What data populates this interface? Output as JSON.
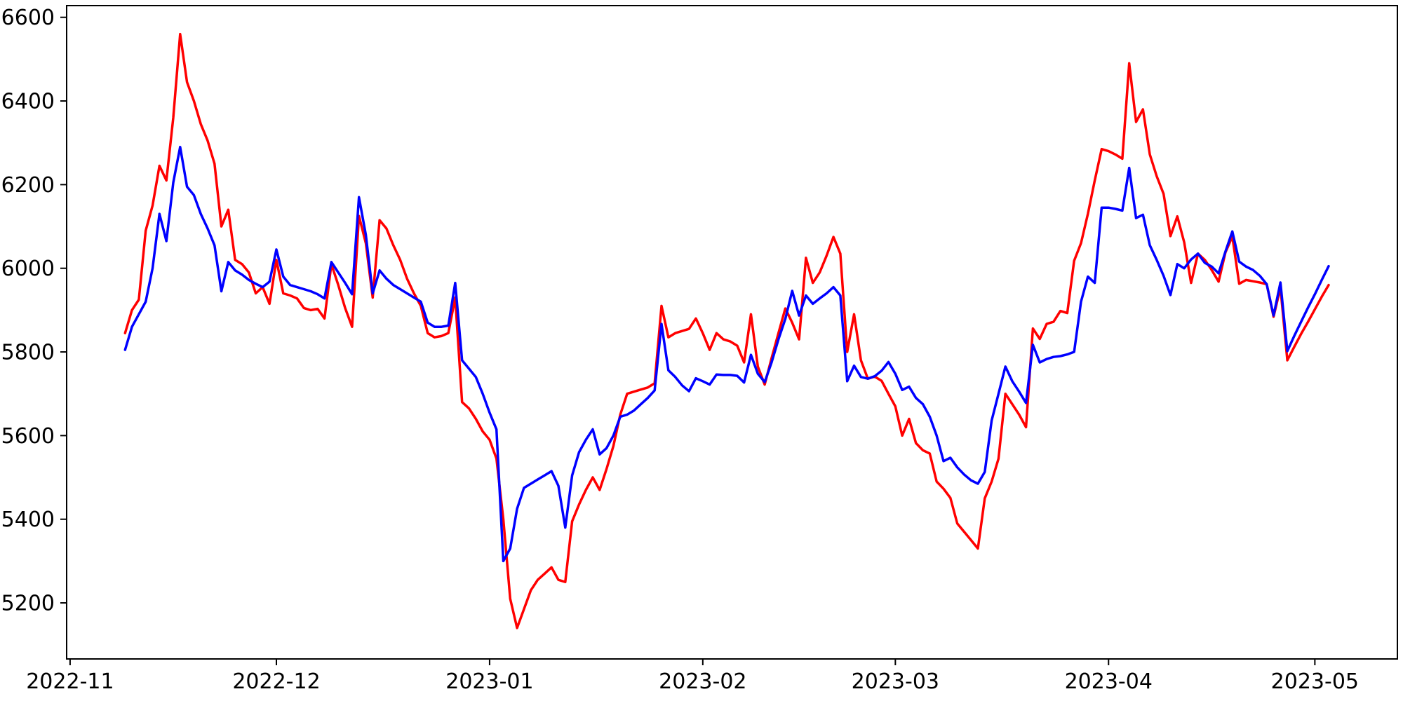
{
  "page": {
    "background_color": "#ffffff"
  },
  "chart_data": {
    "type": "line",
    "title": "",
    "xlabel": "",
    "ylabel": "",
    "grid": false,
    "legend": false,
    "plot_bg_color": "#ffffff",
    "spine_color": "#000000",
    "x_axis": {
      "unit": "date",
      "epoch": "2022-11-01",
      "tick_labels": [
        "2022-11",
        "2022-12",
        "2023-01",
        "2023-02",
        "2023-03",
        "2023-04",
        "2023-05"
      ],
      "tick_day_offsets": [
        0,
        30,
        61,
        92,
        120,
        151,
        181
      ],
      "xlim_days": [
        -0.5,
        193
      ]
    },
    "y_axis": {
      "tick_labels": [
        "5200",
        "5400",
        "5600",
        "5800",
        "6000",
        "6200",
        "6400",
        "6600"
      ],
      "tick_values": [
        5200,
        5400,
        5600,
        5800,
        6000,
        6200,
        6400,
        6600
      ],
      "ylim": [
        5066,
        6628
      ]
    },
    "series": [
      {
        "name": "red-series",
        "color": "#ff0000",
        "line_width": 3.5,
        "x_start_day_offset": 8,
        "x_step_days": 1,
        "values": [
          5845,
          5900,
          5925,
          6090,
          6150,
          6245,
          6210,
          6360,
          6560,
          6445,
          6400,
          6345,
          6305,
          6250,
          6100,
          6140,
          6020,
          6010,
          5990,
          5940,
          5955,
          5915,
          6020,
          5940,
          5935,
          5928,
          5905,
          5900,
          5903,
          5880,
          6010,
          5960,
          5905,
          5860,
          6125,
          6060,
          5930,
          6115,
          6095,
          6055,
          6020,
          5975,
          5940,
          5910,
          5845,
          5835,
          5838,
          5845,
          5930,
          5680,
          5665,
          5640,
          5610,
          5590,
          5545,
          5400,
          5210,
          5140,
          5185,
          5230,
          5255,
          5270,
          5285,
          5255,
          5250,
          5395,
          5435,
          5470,
          5500,
          5470,
          5520,
          5575,
          5650,
          5700,
          5705,
          5710,
          5715,
          5725,
          5910,
          5835,
          5845,
          5850,
          5855,
          5880,
          5845,
          5805,
          5845,
          5830,
          5825,
          5815,
          5775,
          5890,
          5765,
          5722,
          5785,
          5845,
          5904,
          5870,
          5830,
          6025,
          5965,
          5990,
          6030,
          6075,
          6035,
          5800,
          5890,
          5780,
          5736,
          5741,
          5731,
          5700,
          5670,
          5600,
          5640,
          5582,
          5565,
          5557,
          5490,
          5473,
          5451,
          5390,
          5370,
          5350,
          5330,
          5450,
          5490,
          5545,
          5700,
          5675,
          5650,
          5620,
          5856,
          5831,
          5867,
          5872,
          5898,
          5893,
          6018,
          6060,
          6130,
          6210,
          6285,
          6280,
          6272,
          6262,
          6490,
          6350,
          6380,
          6272,
          6220,
          6178,
          6077,
          6124,
          6062,
          5965,
          6035,
          6020,
          5996,
          5968,
          6038,
          6076,
          5963,
          5972,
          5969,
          5966,
          5962,
          5884,
          5954,
          5780,
          5812,
          5843,
          5872,
          5902,
          5932,
          5960
        ]
      },
      {
        "name": "blue-series",
        "color": "#0000ff",
        "line_width": 3.5,
        "x_start_day_offset": 8,
        "x_step_days": 1,
        "values": [
          5805,
          5860,
          5890,
          5920,
          6000,
          6130,
          6065,
          6205,
          6290,
          6195,
          6175,
          6130,
          6095,
          6055,
          5945,
          6015,
          5995,
          5985,
          5972,
          5963,
          5955,
          5968,
          6045,
          5980,
          5960,
          5955,
          5950,
          5945,
          5938,
          5928,
          6015,
          5990,
          5965,
          5938,
          6170,
          6080,
          5940,
          5995,
          5975,
          5960,
          5950,
          5940,
          5930,
          5920,
          5870,
          5860,
          5860,
          5863,
          5965,
          5780,
          5760,
          5740,
          5700,
          5655,
          5615,
          5300,
          5330,
          5425,
          5475,
          5485,
          5495,
          5505,
          5515,
          5480,
          5380,
          5505,
          5560,
          5590,
          5615,
          5555,
          5570,
          5600,
          5645,
          5650,
          5660,
          5675,
          5690,
          5708,
          5867,
          5756,
          5740,
          5720,
          5706,
          5737,
          5730,
          5722,
          5746,
          5745,
          5745,
          5743,
          5727,
          5793,
          5748,
          5728,
          5775,
          5830,
          5879,
          5946,
          5887,
          5935,
          5915,
          5928,
          5940,
          5955,
          5935,
          5730,
          5767,
          5740,
          5736,
          5742,
          5755,
          5776,
          5748,
          5709,
          5717,
          5690,
          5675,
          5645,
          5600,
          5539,
          5547,
          5524,
          5507,
          5493,
          5485,
          5513,
          5636,
          5700,
          5765,
          5730,
          5705,
          5678,
          5817,
          5775,
          5783,
          5788,
          5790,
          5794,
          5800,
          5920,
          5980,
          5965,
          6145,
          6145,
          6142,
          6138,
          6240,
          6120,
          6128,
          6055,
          6020,
          5982,
          5936,
          6010,
          6000,
          6021,
          6035,
          6013,
          6004,
          5988,
          6040,
          6088,
          6016,
          6004,
          5996,
          5982,
          5962,
          5887,
          5966,
          5802,
          5838,
          5872,
          5906,
          5938,
          5972,
          6005
        ]
      }
    ]
  }
}
